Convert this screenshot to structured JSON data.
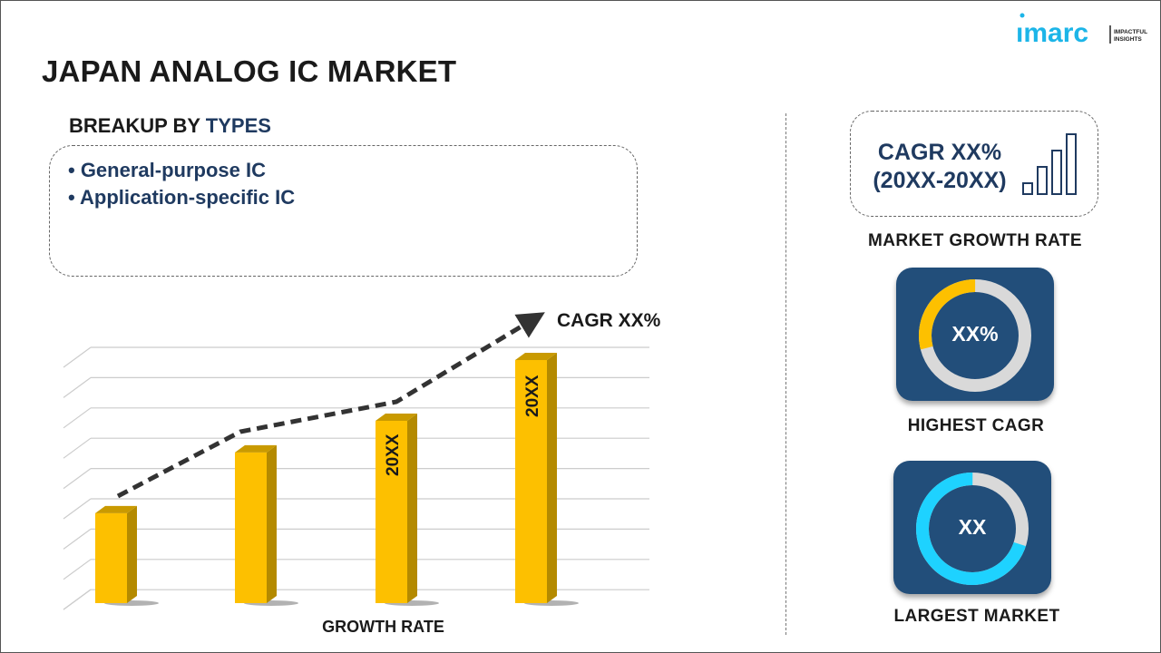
{
  "title": "JAPAN ANALOG IC MARKET",
  "logo": {
    "brand": "imarc",
    "tagline": "IMPACTFUL INSIGHTS",
    "color": "#1cb5e8"
  },
  "breakup": {
    "prefix": "BREAKUP BY",
    "highlight": "TYPES",
    "items": [
      "• General-purpose IC",
      "• Application-specific IC"
    ]
  },
  "chart": {
    "cagr_label": "CAGR XX%",
    "bar_labels": [
      "20XX",
      "20XX"
    ],
    "xlabel": "GROWTH RATE",
    "bar_color": "#fdc000",
    "relative_heights": [
      0.37,
      0.62,
      0.75,
      1.0
    ]
  },
  "growth": {
    "line1": "CAGR XX%",
    "line2": "(20XX-20XX)",
    "label": "MARKET GROWTH RATE"
  },
  "highest": {
    "value": "XX%",
    "label": "HIGHEST CAGR",
    "fraction": 0.29,
    "color": "#fdc000"
  },
  "largest": {
    "value": "XX",
    "label": "LARGEST MARKET",
    "fraction": 0.7,
    "color": "#1ed2ff"
  },
  "colors": {
    "navy": "#1f3a60",
    "card": "#224e7a"
  }
}
